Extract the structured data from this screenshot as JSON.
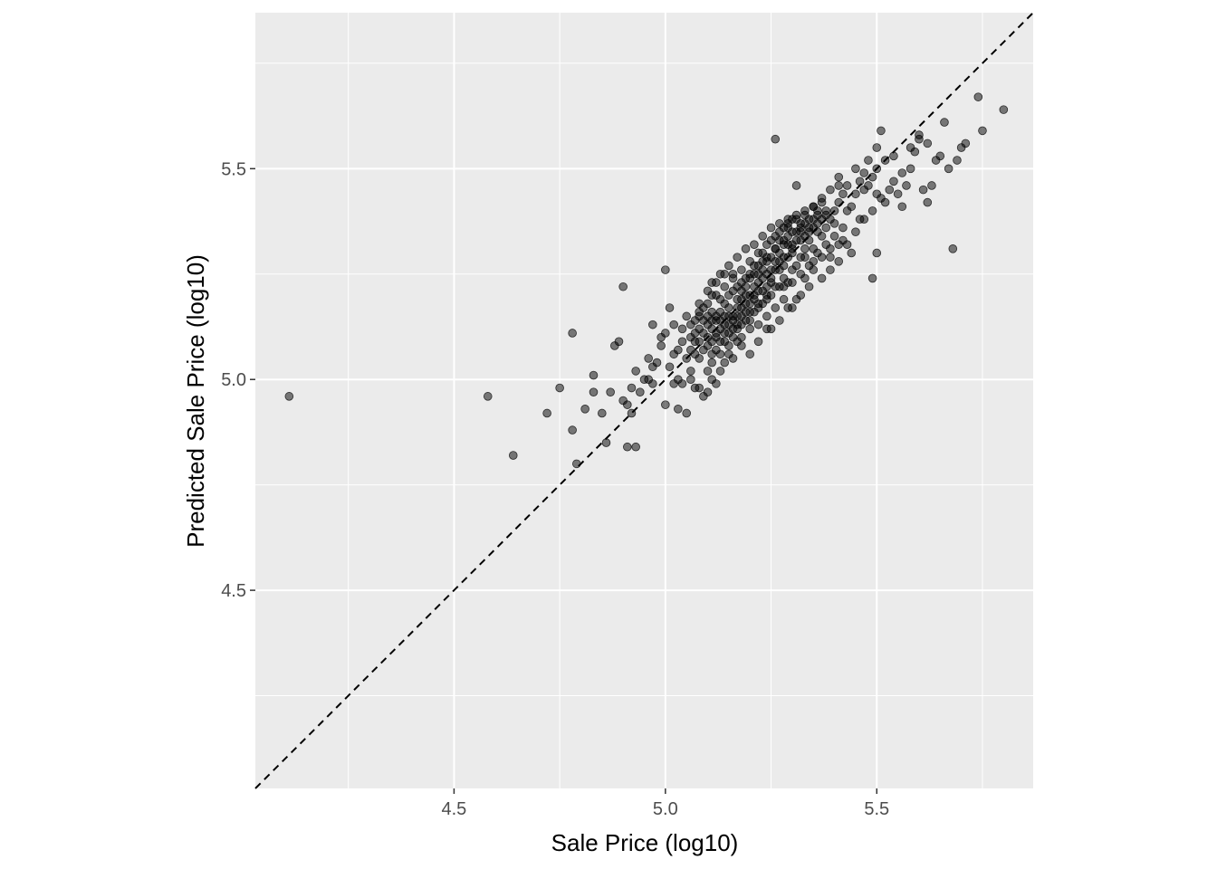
{
  "chart_data": {
    "type": "scatter",
    "title": "",
    "xlabel": "Sale Price (log10)",
    "ylabel": "Predicted Sale Price (log10)",
    "xlim": [
      4.03,
      5.87
    ],
    "ylim": [
      4.03,
      5.87
    ],
    "x_ticks": [
      4.5,
      5.0,
      5.5
    ],
    "x_tick_labels": [
      "4.5",
      "5.0",
      "5.5"
    ],
    "y_ticks": [
      4.5,
      5.0,
      5.5
    ],
    "y_tick_labels": [
      "4.5",
      "5.0",
      "5.5"
    ],
    "grid": true,
    "reference_line": {
      "slope": 1,
      "intercept": 0,
      "style": "dashed",
      "color": "#000000"
    },
    "point_color": "#000000",
    "point_opacity": 0.5,
    "background_color": "#ebebeb",
    "points": [
      [
        4.11,
        4.96
      ],
      [
        4.58,
        4.96
      ],
      [
        4.64,
        4.82
      ],
      [
        4.72,
        4.92
      ],
      [
        4.75,
        4.98
      ],
      [
        4.78,
        4.88
      ],
      [
        4.79,
        4.8
      ],
      [
        4.78,
        5.11
      ],
      [
        4.81,
        4.93
      ],
      [
        4.83,
        4.97
      ],
      [
        4.83,
        5.01
      ],
      [
        4.85,
        4.92
      ],
      [
        4.86,
        4.85
      ],
      [
        4.87,
        4.97
      ],
      [
        4.88,
        5.08
      ],
      [
        4.89,
        5.09
      ],
      [
        4.9,
        5.22
      ],
      [
        4.9,
        4.95
      ],
      [
        4.91,
        4.94
      ],
      [
        4.92,
        4.92
      ],
      [
        4.91,
        4.84
      ],
      [
        4.93,
        4.84
      ],
      [
        4.92,
        4.98
      ],
      [
        4.93,
        5.02
      ],
      [
        4.94,
        4.97
      ],
      [
        4.95,
        5.0
      ],
      [
        4.96,
        5.05
      ],
      [
        4.97,
        5.03
      ],
      [
        4.98,
        5.04
      ],
      [
        4.99,
        5.08
      ],
      [
        5.0,
        5.26
      ],
      [
        5.0,
        4.94
      ],
      [
        5.0,
        5.11
      ],
      [
        5.01,
        5.03
      ],
      [
        5.02,
        5.06
      ],
      [
        5.03,
        5.0
      ],
      [
        5.03,
        4.93
      ],
      [
        5.04,
        5.12
      ],
      [
        5.05,
        4.92
      ],
      [
        5.06,
        5.02
      ],
      [
        5.07,
        5.09
      ],
      [
        5.07,
        4.98
      ],
      [
        5.08,
        5.16
      ],
      [
        5.09,
        4.96
      ],
      [
        5.1,
        5.13
      ],
      [
        5.1,
        5.08
      ],
      [
        5.11,
        5.2
      ],
      [
        5.11,
        5.04
      ],
      [
        5.12,
        5.1
      ],
      [
        5.12,
        5.14
      ],
      [
        5.13,
        5.16
      ],
      [
        5.13,
        5.06
      ],
      [
        5.14,
        5.11
      ],
      [
        5.14,
        5.18
      ],
      [
        5.15,
        5.13
      ],
      [
        5.15,
        5.08
      ],
      [
        5.16,
        5.15
      ],
      [
        5.16,
        5.21
      ],
      [
        5.17,
        5.12
      ],
      [
        5.17,
        5.17
      ],
      [
        5.18,
        5.19
      ],
      [
        5.18,
        5.1
      ],
      [
        5.19,
        5.16
      ],
      [
        5.19,
        5.22
      ],
      [
        5.2,
        5.14
      ],
      [
        5.2,
        5.24
      ],
      [
        5.21,
        5.2
      ],
      [
        5.21,
        5.27
      ],
      [
        5.22,
        5.18
      ],
      [
        5.22,
        5.23
      ],
      [
        5.23,
        5.21
      ],
      [
        5.23,
        5.28
      ],
      [
        5.24,
        5.25
      ],
      [
        5.24,
        5.19
      ],
      [
        5.25,
        5.29
      ],
      [
        5.25,
        5.23
      ],
      [
        5.26,
        5.31
      ],
      [
        5.26,
        5.57
      ],
      [
        5.27,
        5.26
      ],
      [
        5.27,
        5.33
      ],
      [
        5.28,
        5.29
      ],
      [
        5.28,
        5.24
      ],
      [
        5.29,
        5.32
      ],
      [
        5.29,
        5.36
      ],
      [
        5.3,
        5.3
      ],
      [
        5.3,
        5.26
      ],
      [
        5.31,
        5.33
      ],
      [
        5.31,
        5.46
      ],
      [
        5.32,
        5.29
      ],
      [
        5.32,
        5.35
      ],
      [
        5.33,
        5.31
      ],
      [
        5.33,
        5.37
      ],
      [
        5.34,
        5.33
      ],
      [
        5.35,
        5.36
      ],
      [
        5.35,
        5.28
      ],
      [
        5.36,
        5.39
      ],
      [
        5.37,
        5.34
      ],
      [
        5.38,
        5.4
      ],
      [
        5.39,
        5.31
      ],
      [
        5.4,
        5.37
      ],
      [
        5.41,
        5.46
      ],
      [
        5.42,
        5.33
      ],
      [
        5.43,
        5.4
      ],
      [
        5.44,
        5.3
      ],
      [
        5.45,
        5.5
      ],
      [
        5.46,
        5.38
      ],
      [
        5.47,
        5.45
      ],
      [
        5.48,
        5.52
      ],
      [
        5.49,
        5.24
      ],
      [
        5.5,
        5.44
      ],
      [
        5.5,
        5.55
      ],
      [
        5.5,
        5.3
      ],
      [
        5.51,
        5.59
      ],
      [
        5.52,
        5.42
      ],
      [
        5.54,
        5.53
      ],
      [
        5.55,
        5.44
      ],
      [
        5.56,
        5.41
      ],
      [
        5.57,
        5.46
      ],
      [
        5.58,
        5.5
      ],
      [
        5.59,
        5.54
      ],
      [
        5.6,
        5.57
      ],
      [
        5.61,
        5.45
      ],
      [
        5.62,
        5.42
      ],
      [
        5.63,
        5.46
      ],
      [
        5.65,
        5.53
      ],
      [
        5.66,
        5.61
      ],
      [
        5.67,
        5.5
      ],
      [
        5.68,
        5.31
      ],
      [
        5.7,
        5.55
      ],
      [
        5.71,
        5.56
      ],
      [
        5.74,
        5.67
      ],
      [
        5.75,
        5.59
      ],
      [
        5.8,
        5.64
      ],
      [
        5.06,
        5.1
      ],
      [
        5.08,
        5.12
      ],
      [
        5.09,
        5.14
      ],
      [
        5.1,
        5.1
      ],
      [
        5.11,
        5.12
      ],
      [
        5.12,
        5.15
      ],
      [
        5.13,
        5.12
      ],
      [
        5.14,
        5.15
      ],
      [
        5.15,
        5.17
      ],
      [
        5.16,
        5.14
      ],
      [
        5.17,
        5.19
      ],
      [
        5.18,
        5.21
      ],
      [
        5.19,
        5.18
      ],
      [
        5.2,
        5.2
      ],
      [
        5.21,
        5.22
      ],
      [
        5.22,
        5.25
      ],
      [
        5.23,
        5.26
      ],
      [
        5.24,
        5.28
      ],
      [
        5.25,
        5.26
      ],
      [
        5.26,
        5.28
      ],
      [
        5.27,
        5.3
      ],
      [
        5.28,
        5.32
      ],
      [
        5.29,
        5.34
      ],
      [
        5.3,
        5.32
      ],
      [
        5.31,
        5.35
      ],
      [
        5.32,
        5.33
      ],
      [
        5.33,
        5.34
      ],
      [
        5.34,
        5.36
      ],
      [
        5.35,
        5.38
      ],
      [
        5.36,
        5.35
      ],
      [
        5.37,
        5.38
      ],
      [
        5.38,
        5.36
      ],
      [
        5.39,
        5.38
      ],
      [
        5.4,
        5.4
      ],
      [
        5.41,
        5.42
      ],
      [
        5.42,
        5.44
      ],
      [
        5.43,
        5.46
      ],
      [
        5.44,
        5.41
      ],
      [
        5.45,
        5.44
      ],
      [
        5.46,
        5.47
      ],
      [
        5.47,
        5.49
      ],
      [
        5.48,
        5.46
      ],
      [
        5.49,
        5.48
      ],
      [
        5.5,
        5.5
      ],
      [
        5.52,
        5.52
      ],
      [
        5.54,
        5.47
      ],
      [
        5.56,
        5.49
      ],
      [
        5.58,
        5.55
      ],
      [
        5.6,
        5.58
      ],
      [
        5.62,
        5.56
      ],
      [
        5.64,
        5.52
      ],
      [
        5.69,
        5.52
      ],
      [
        5.07,
        5.14
      ],
      [
        5.09,
        5.17
      ],
      [
        5.11,
        5.16
      ],
      [
        5.13,
        5.19
      ],
      [
        5.15,
        5.2
      ],
      [
        5.17,
        5.22
      ],
      [
        5.19,
        5.24
      ],
      [
        5.21,
        5.25
      ],
      [
        5.23,
        5.3
      ],
      [
        5.25,
        5.33
      ],
      [
        5.27,
        5.35
      ],
      [
        5.29,
        5.37
      ],
      [
        5.31,
        5.38
      ],
      [
        5.33,
        5.39
      ],
      [
        5.35,
        5.41
      ],
      [
        5.37,
        5.42
      ],
      [
        5.12,
        5.07
      ],
      [
        5.14,
        5.09
      ],
      [
        5.16,
        5.1
      ],
      [
        5.18,
        5.13
      ],
      [
        5.2,
        5.16
      ],
      [
        5.22,
        5.17
      ],
      [
        5.24,
        5.2
      ],
      [
        5.26,
        5.22
      ],
      [
        5.28,
        5.22
      ],
      [
        5.3,
        5.23
      ],
      [
        5.32,
        5.25
      ],
      [
        5.34,
        5.27
      ],
      [
        5.36,
        5.3
      ],
      [
        5.38,
        5.32
      ],
      [
        5.4,
        5.34
      ],
      [
        5.42,
        5.36
      ],
      [
        5.05,
        5.05
      ],
      [
        5.07,
        5.06
      ],
      [
        5.09,
        5.07
      ],
      [
        5.11,
        5.09
      ],
      [
        5.13,
        5.09
      ],
      [
        5.15,
        5.11
      ],
      [
        5.17,
        5.13
      ],
      [
        5.19,
        5.14
      ],
      [
        5.21,
        5.16
      ],
      [
        5.23,
        5.18
      ],
      [
        5.25,
        5.2
      ],
      [
        5.27,
        5.22
      ],
      [
        5.29,
        5.23
      ],
      [
        5.31,
        5.27
      ],
      [
        5.33,
        5.29
      ],
      [
        5.35,
        5.31
      ],
      [
        5.06,
        5.13
      ],
      [
        5.08,
        5.15
      ],
      [
        5.1,
        5.18
      ],
      [
        5.12,
        5.2
      ],
      [
        5.14,
        5.22
      ],
      [
        5.16,
        5.24
      ],
      [
        5.18,
        5.26
      ],
      [
        5.2,
        5.28
      ],
      [
        5.22,
        5.3
      ],
      [
        5.24,
        5.32
      ],
      [
        5.26,
        5.34
      ],
      [
        5.28,
        5.36
      ],
      [
        5.3,
        5.38
      ],
      [
        5.32,
        5.36
      ],
      [
        5.34,
        5.38
      ],
      [
        5.36,
        5.4
      ],
      [
        4.97,
        5.13
      ],
      [
        4.99,
        5.1
      ],
      [
        5.01,
        5.17
      ],
      [
        5.02,
        5.13
      ],
      [
        5.04,
        5.09
      ],
      [
        5.05,
        5.15
      ],
      [
        5.03,
        5.07
      ],
      [
        5.06,
        5.07
      ],
      [
        5.08,
        5.05
      ],
      [
        5.1,
        5.02
      ],
      [
        5.11,
        5.0
      ],
      [
        5.12,
        4.99
      ],
      [
        5.14,
        5.04
      ],
      [
        5.16,
        5.05
      ],
      [
        5.18,
        5.08
      ],
      [
        5.2,
        5.06
      ],
      [
        5.22,
        5.09
      ],
      [
        5.24,
        5.12
      ],
      [
        5.26,
        5.17
      ],
      [
        5.28,
        5.19
      ],
      [
        5.3,
        5.17
      ],
      [
        5.32,
        5.2
      ],
      [
        5.34,
        5.22
      ],
      [
        5.37,
        5.24
      ],
      [
        5.39,
        5.26
      ],
      [
        5.41,
        5.28
      ],
      [
        5.43,
        5.32
      ],
      [
        5.45,
        5.35
      ],
      [
        5.47,
        5.38
      ],
      [
        5.49,
        5.4
      ],
      [
        5.51,
        5.43
      ],
      [
        5.53,
        5.45
      ],
      [
        4.96,
        5.0
      ],
      [
        4.97,
        4.99
      ],
      [
        5.02,
        4.99
      ],
      [
        5.04,
        4.99
      ],
      [
        5.06,
        5.0
      ],
      [
        5.08,
        4.98
      ],
      [
        5.1,
        4.97
      ],
      [
        5.11,
        5.06
      ],
      [
        5.13,
        5.02
      ],
      [
        5.15,
        5.06
      ],
      [
        5.17,
        5.09
      ],
      [
        5.18,
        5.15
      ],
      [
        5.2,
        5.12
      ],
      [
        5.22,
        5.13
      ],
      [
        5.24,
        5.15
      ],
      [
        5.25,
        5.12
      ],
      [
        5.27,
        5.14
      ],
      [
        5.29,
        5.17
      ],
      [
        5.31,
        5.19
      ],
      [
        5.33,
        5.24
      ],
      [
        5.35,
        5.26
      ],
      [
        5.37,
        5.29
      ],
      [
        5.39,
        5.29
      ],
      [
        5.41,
        5.32
      ],
      [
        5.11,
        5.23
      ],
      [
        5.13,
        5.25
      ],
      [
        5.15,
        5.27
      ],
      [
        5.17,
        5.29
      ],
      [
        5.19,
        5.31
      ],
      [
        5.21,
        5.32
      ],
      [
        5.23,
        5.34
      ],
      [
        5.25,
        5.36
      ],
      [
        5.27,
        5.37
      ],
      [
        5.29,
        5.38
      ],
      [
        5.31,
        5.39
      ],
      [
        5.33,
        5.4
      ],
      [
        5.35,
        5.41
      ],
      [
        5.37,
        5.43
      ],
      [
        5.39,
        5.45
      ],
      [
        5.41,
        5.48
      ],
      [
        5.08,
        5.18
      ],
      [
        5.1,
        5.21
      ],
      [
        5.12,
        5.23
      ],
      [
        5.14,
        5.25
      ],
      [
        5.16,
        5.25
      ],
      [
        5.18,
        5.23
      ],
      [
        5.2,
        5.25
      ],
      [
        5.22,
        5.27
      ],
      [
        5.24,
        5.29
      ],
      [
        5.26,
        5.31
      ],
      [
        5.28,
        5.33
      ],
      [
        5.3,
        5.35
      ],
      [
        5.32,
        5.37
      ],
      [
        5.34,
        5.35
      ],
      [
        5.36,
        5.37
      ],
      [
        5.38,
        5.39
      ],
      [
        5.07,
        5.11
      ],
      [
        5.08,
        5.09
      ],
      [
        5.09,
        5.11
      ],
      [
        5.1,
        5.15
      ],
      [
        5.11,
        5.14
      ],
      [
        5.12,
        5.11
      ],
      [
        5.13,
        5.14
      ],
      [
        5.14,
        5.13
      ],
      [
        5.15,
        5.15
      ],
      [
        5.16,
        5.12
      ],
      [
        5.17,
        5.15
      ],
      [
        5.18,
        5.17
      ],
      [
        5.19,
        5.2
      ],
      [
        5.2,
        5.18
      ],
      [
        5.21,
        5.19
      ],
      [
        5.22,
        5.21
      ],
      [
        5.23,
        5.24
      ],
      [
        5.24,
        5.22
      ],
      [
        5.25,
        5.24
      ],
      [
        5.26,
        5.26
      ],
      [
        5.27,
        5.28
      ],
      [
        5.28,
        5.27
      ],
      [
        5.29,
        5.29
      ],
      [
        5.3,
        5.31
      ]
    ]
  }
}
